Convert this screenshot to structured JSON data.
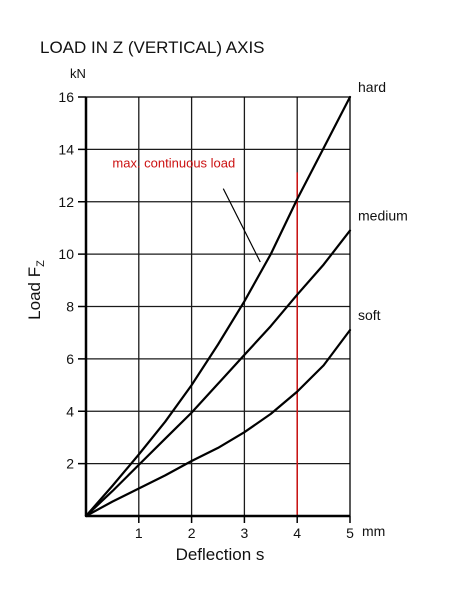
{
  "chart_data": {
    "type": "line",
    "title": "LOAD IN Z (VERTICAL) AXIS",
    "ylabel_text": "Load F",
    "ylabel_sub": "Z",
    "yunit": "kN",
    "xlabel": "Deflection s",
    "xunit": "mm",
    "xlim": [
      0,
      5
    ],
    "ylim": [
      0,
      16
    ],
    "xticks": [
      1,
      2,
      3,
      4,
      5
    ],
    "yticks": [
      2,
      4,
      6,
      8,
      10,
      12,
      14,
      16
    ],
    "grid": true,
    "series": [
      {
        "name": "hard",
        "color": "#000000",
        "x": [
          0,
          0.5,
          1,
          1.5,
          2,
          2.5,
          3,
          3.5,
          4,
          4.5,
          5
        ],
        "y": [
          0,
          1.15,
          2.35,
          3.6,
          5.0,
          6.55,
          8.2,
          10.0,
          12.1,
          14.05,
          16.0
        ]
      },
      {
        "name": "medium",
        "color": "#000000",
        "x": [
          0,
          0.5,
          1,
          1.5,
          2,
          2.5,
          3,
          3.5,
          4,
          4.5,
          5
        ],
        "y": [
          0,
          0.95,
          1.95,
          2.95,
          3.95,
          5.05,
          6.15,
          7.25,
          8.45,
          9.6,
          10.9
        ]
      },
      {
        "name": "soft",
        "color": "#000000",
        "x": [
          0,
          0.5,
          1,
          1.5,
          2,
          2.5,
          3,
          3.5,
          4,
          4.5,
          5
        ],
        "y": [
          0,
          0.55,
          1.05,
          1.55,
          2.1,
          2.6,
          3.2,
          3.9,
          4.75,
          5.75,
          7.1
        ]
      }
    ],
    "reference_line": {
      "label": "max. continuous load",
      "x": 4,
      "color": "#cc1111"
    },
    "annotation_pointer_target": {
      "x": 3.3,
      "y": 9.3
    }
  }
}
